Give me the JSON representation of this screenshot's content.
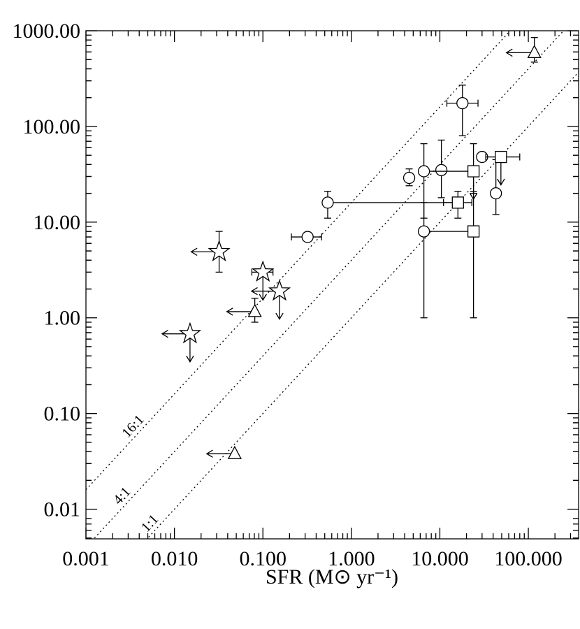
{
  "chart_data": {
    "type": "scatter",
    "log_x": true,
    "log_y": true,
    "x_label": "SFR (M⊙ yr⁻¹)",
    "xlim": [
      0.001,
      370
    ],
    "ylim": [
      0.0049,
      1000
    ],
    "xticks": [
      {
        "value": 0.001,
        "label": "0.001"
      },
      {
        "value": 0.01,
        "label": "0.010"
      },
      {
        "value": 0.1,
        "label": "0.100"
      },
      {
        "value": 1,
        "label": "1.000"
      },
      {
        "value": 10,
        "label": "10.000"
      },
      {
        "value": 100,
        "label": "100.000"
      }
    ],
    "yticks": [
      {
        "value": 0.01,
        "label": "0.01"
      },
      {
        "value": 0.1,
        "label": "0.10"
      },
      {
        "value": 1,
        "label": "1.00"
      },
      {
        "value": 10,
        "label": "10.00"
      },
      {
        "value": 100,
        "label": "100.00"
      },
      {
        "value": 1000,
        "label": "1000.00"
      }
    ],
    "ratio_lines": [
      {
        "ratio": 16,
        "label": "16:1"
      },
      {
        "ratio": 4,
        "label": "4:1"
      },
      {
        "ratio": 1,
        "label": "1:1"
      }
    ],
    "color": "#000000",
    "points": [
      {
        "marker": "circle",
        "x": 18,
        "y": 175,
        "xerr": [
          12,
          27
        ],
        "yerr": [
          80,
          270
        ]
      },
      {
        "marker": "circle",
        "x": 30,
        "y": 48
      },
      {
        "marker": "circle",
        "x": 10.4,
        "y": 35,
        "yerr": [
          18,
          72
        ]
      },
      {
        "marker": "circle",
        "x": 6.6,
        "y": 34,
        "xerr": [
          6.6,
          24
        ],
        "yerr": [
          11,
          66
        ]
      },
      {
        "marker": "circle",
        "x": 4.5,
        "y": 29,
        "yerr": [
          24,
          36
        ]
      },
      {
        "marker": "circle",
        "x": 43,
        "y": 20,
        "yerr": [
          12,
          45
        ]
      },
      {
        "marker": "circle",
        "x": 0.54,
        "y": 16,
        "xerr": [
          0.54,
          16
        ],
        "yerr": [
          11,
          21
        ]
      },
      {
        "marker": "circle",
        "x": 0.32,
        "y": 7,
        "xerr": [
          0.21,
          0.46
        ]
      },
      {
        "marker": "circle",
        "x": 6.6,
        "y": 8,
        "xerr": [
          6.6,
          24
        ],
        "yerr": [
          1,
          16
        ]
      },
      {
        "marker": "square",
        "x": 24,
        "y": 34,
        "yerr": [
          20,
          66
        ],
        "y_upper": true
      },
      {
        "marker": "square",
        "x": 24,
        "y": 8,
        "yerr": [
          1,
          21
        ]
      },
      {
        "marker": "square",
        "x": 49,
        "y": 48,
        "xerr": [
          33,
          80
        ],
        "y_upper": true
      },
      {
        "marker": "square",
        "x": 16,
        "y": 16,
        "xerr": [
          11,
          23
        ],
        "yerr": [
          11,
          21
        ]
      },
      {
        "marker": "triangle",
        "x": 117,
        "y": 590,
        "yerr": [
          470,
          850
        ],
        "x_upper": true
      },
      {
        "marker": "triangle",
        "x": 0.081,
        "y": 1.16,
        "yerr": [
          0.9,
          1.6
        ],
        "x_upper": true
      },
      {
        "marker": "triangle",
        "x": 0.048,
        "y": 0.038,
        "x_upper": true
      },
      {
        "marker": "star",
        "x": 0.032,
        "y": 4.9,
        "yerr": [
          3,
          8
        ],
        "x_upper": true
      },
      {
        "marker": "star",
        "x": 0.1,
        "y": 3,
        "xerr": [
          0.075,
          0.13
        ],
        "y_upper": true
      },
      {
        "marker": "star",
        "x": 0.154,
        "y": 1.9,
        "x_upper": true,
        "y_upper": true
      },
      {
        "marker": "star",
        "x": 0.015,
        "y": 0.68,
        "x_upper": true,
        "y_upper": true
      }
    ]
  }
}
